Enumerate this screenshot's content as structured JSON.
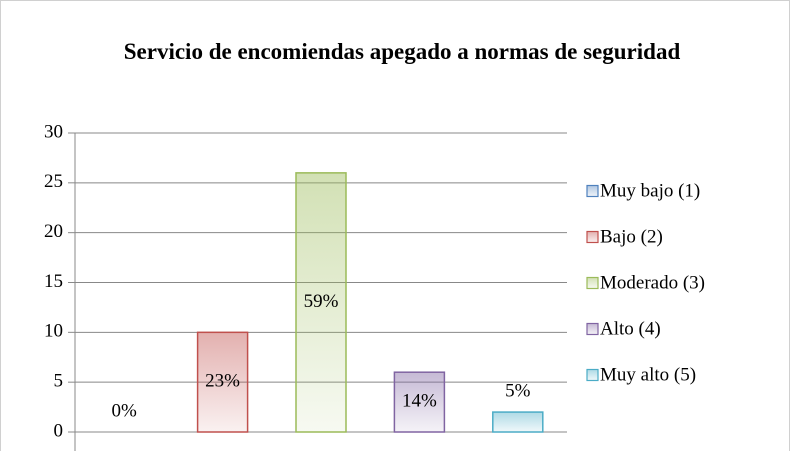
{
  "chart_data": {
    "type": "bar",
    "title": "Servicio de encomiendas apegado a normas de seguridad",
    "series": [
      {
        "name": "Muy bajo (1)",
        "color": "#4f81bd",
        "values": [
          0
        ],
        "value_labels": [
          "0%"
        ]
      },
      {
        "name": "Bajo (2)",
        "color": "#c0504d",
        "values": [
          10
        ],
        "value_labels": [
          "23%"
        ]
      },
      {
        "name": "Moderado (3)",
        "color": "#9bbb59",
        "values": [
          26
        ],
        "value_labels": [
          "59%"
        ]
      },
      {
        "name": "Alto (4)",
        "color": "#8064a2",
        "values": [
          6
        ],
        "value_labels": [
          "14%"
        ]
      },
      {
        "name": "Muy alto (5)",
        "color": "#4bacc6",
        "values": [
          2
        ],
        "value_labels": [
          "5%"
        ]
      }
    ],
    "ylim": [
      0,
      30
    ],
    "yticks": [
      0,
      5,
      10,
      15,
      20,
      25,
      30
    ],
    "grid": true,
    "legend": "right"
  }
}
